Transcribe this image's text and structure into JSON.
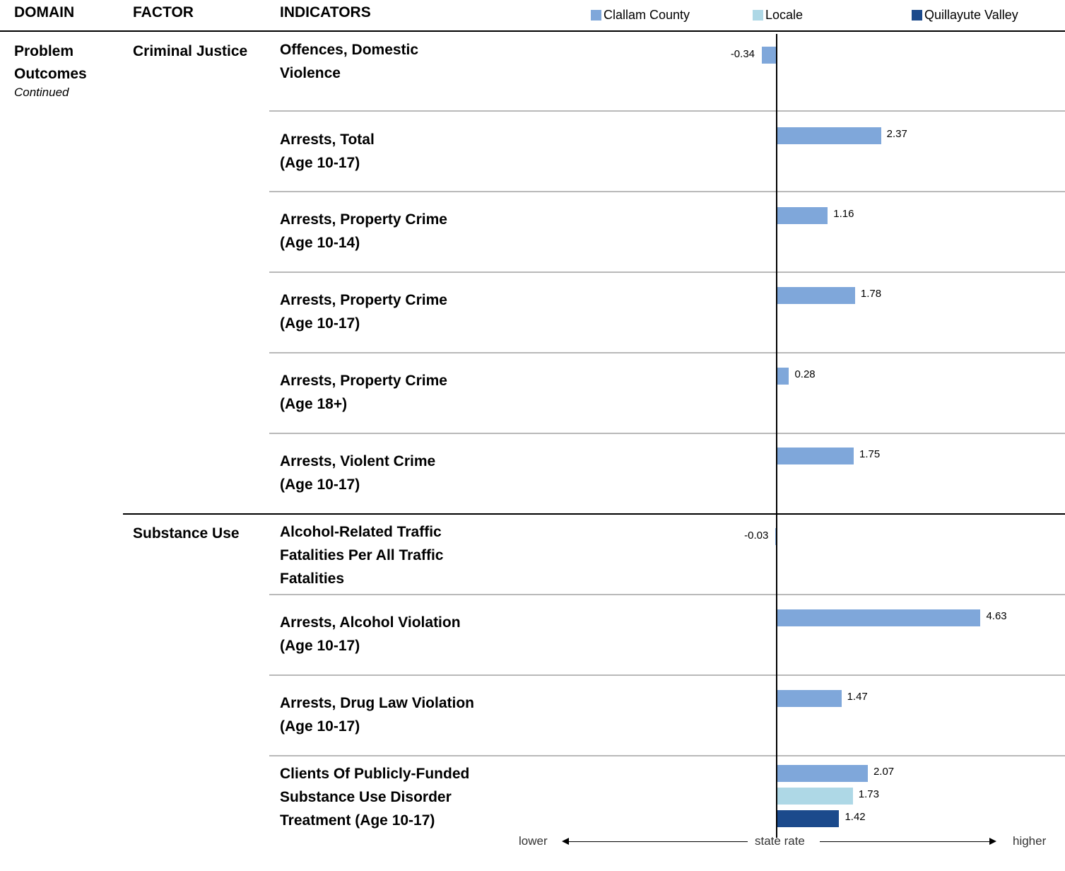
{
  "header": {
    "domain": "DOMAIN",
    "factor": "FACTOR",
    "indicators": "INDICATORS"
  },
  "legend": [
    {
      "name": "Clallam County",
      "color": "#7fa7da"
    },
    {
      "name": "Locale",
      "color": "#aed8e6"
    },
    {
      "name": "Quillayute Valley",
      "color": "#1b4a8c"
    }
  ],
  "domain": {
    "label": "Problem\nOutcomes",
    "sub": "Continued"
  },
  "factors": [
    {
      "label": "Criminal Justice"
    },
    {
      "label": "Substance Use"
    }
  ],
  "footer": {
    "lower": "lower",
    "center": "state rate",
    "higher": "higher"
  },
  "chart_data": {
    "type": "bar",
    "orientation": "horizontal",
    "reference": "state rate",
    "series_names": [
      "Clallam County",
      "Locale",
      "Quillayute Valley"
    ],
    "colors": [
      "#7fa7da",
      "#aed8e6",
      "#1b4a8c"
    ],
    "rows": [
      {
        "factor": "Criminal Justice",
        "indicator": "Offences, Domestic\nViolence",
        "values": [
          {
            "series": "Clallam County",
            "value": -0.34,
            "label": "-0.34"
          }
        ]
      },
      {
        "factor": "Criminal Justice",
        "indicator": "Arrests, Total\n(Age 10-17)",
        "values": [
          {
            "series": "Clallam County",
            "value": 2.37,
            "label": "2.37"
          }
        ]
      },
      {
        "factor": "Criminal Justice",
        "indicator": "Arrests, Property Crime\n(Age 10-14)",
        "values": [
          {
            "series": "Clallam County",
            "value": 1.16,
            "label": "1.16"
          }
        ]
      },
      {
        "factor": "Criminal Justice",
        "indicator": "Arrests, Property Crime\n(Age 10-17)",
        "values": [
          {
            "series": "Clallam County",
            "value": 1.78,
            "label": "1.78"
          }
        ]
      },
      {
        "factor": "Criminal Justice",
        "indicator": "Arrests, Property Crime\n(Age 18+)",
        "values": [
          {
            "series": "Clallam County",
            "value": 0.28,
            "label": "0.28"
          }
        ]
      },
      {
        "factor": "Criminal Justice",
        "indicator": "Arrests, Violent Crime\n(Age 10-17)",
        "values": [
          {
            "series": "Clallam County",
            "value": 1.75,
            "label": "1.75"
          }
        ]
      },
      {
        "factor": "Substance Use",
        "indicator": "Alcohol-Related Traffic\nFatalities Per All Traffic\nFatalities",
        "values": [
          {
            "series": "Clallam County",
            "value": -0.03,
            "label": "-0.03"
          }
        ]
      },
      {
        "factor": "Substance Use",
        "indicator": "Arrests, Alcohol Violation\n(Age 10-17)",
        "values": [
          {
            "series": "Clallam County",
            "value": 4.63,
            "label": "4.63"
          }
        ]
      },
      {
        "factor": "Substance Use",
        "indicator": "Arrests, Drug Law Violation\n(Age 10-17)",
        "values": [
          {
            "series": "Clallam County",
            "value": 1.47,
            "label": "1.47"
          }
        ]
      },
      {
        "factor": "Substance Use",
        "indicator": "Clients Of Publicly-Funded\nSubstance Use Disorder\nTreatment (Age 10-17)",
        "values": [
          {
            "series": "Clallam County",
            "value": 2.07,
            "label": "2.07"
          },
          {
            "series": "Locale",
            "value": 1.73,
            "label": "1.73"
          },
          {
            "series": "Quillayute Valley",
            "value": 1.42,
            "label": "1.42"
          }
        ]
      }
    ]
  }
}
